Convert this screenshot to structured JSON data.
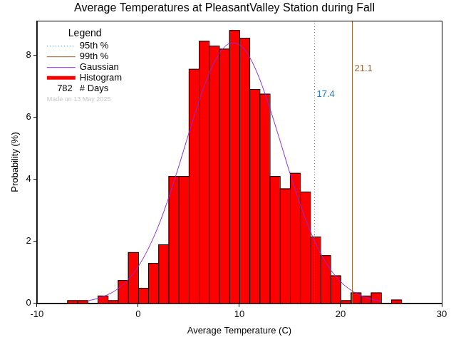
{
  "chart_data": {
    "type": "histogram",
    "title": "Average Temperatures at PleasantValley Station during Fall",
    "x_label": "Average Temperature (C)",
    "y_label": "Probability (%)",
    "bins": [
      -7,
      -6,
      -5,
      -4,
      -3,
      -2,
      -1,
      0,
      1,
      2,
      3,
      4,
      5,
      6,
      7,
      8,
      9,
      10,
      11,
      12,
      13,
      14,
      15,
      16,
      17,
      18,
      19,
      20,
      21,
      22,
      23,
      24,
      25,
      26
    ],
    "series": [
      {
        "name": "Histogram",
        "type": "bar",
        "color": "#ff0000",
        "values": [
          0.1,
          0.1,
          0,
          0.25,
          0.1,
          0.75,
          1.65,
          0.5,
          1.3,
          1.9,
          4.1,
          4.1,
          7.55,
          8.45,
          8.3,
          8.2,
          8.8,
          8.55,
          6.9,
          6.75,
          4.1,
          3.7,
          4.2,
          3.6,
          2.15,
          1.55,
          0.9,
          0.1,
          0.35,
          0.25,
          0.35,
          0,
          0.12
        ]
      },
      {
        "name": "Gaussian",
        "type": "line",
        "color": "#8a2be2",
        "x": [
          -5,
          -4,
          -3,
          -2,
          -1,
          0,
          1,
          2,
          3,
          4,
          5,
          6,
          7,
          8,
          9,
          10,
          11,
          12,
          13,
          14,
          15,
          16,
          17,
          18,
          19,
          20,
          21,
          22,
          23,
          24
        ],
        "values": [
          0.08,
          0.16,
          0.28,
          0.47,
          0.76,
          1.18,
          1.76,
          2.49,
          3.39,
          4.4,
          5.47,
          6.5,
          7.39,
          8.04,
          8.37,
          8.33,
          7.94,
          7.23,
          6.3,
          5.26,
          4.19,
          3.2,
          2.33,
          1.63,
          1.09,
          0.7,
          0.43,
          0.25,
          0.14,
          0.07
        ]
      }
    ],
    "reference_lines": [
      {
        "name": "95th %",
        "value": 17.4,
        "color": "#1e78d2",
        "line_style": "dotted"
      },
      {
        "name": "99th %",
        "value": 21.1,
        "color": "#a0602d",
        "line_style": "solid"
      }
    ],
    "legend": "upper left",
    "legend_title": "Legend",
    "days": 782,
    "days_label": "# Days",
    "note": "Made on 13 May 2025",
    "xlim": [
      -10,
      30
    ],
    "xticks": [
      -10,
      0,
      10,
      20,
      30
    ],
    "ylim": [
      0,
      9.1
    ],
    "yticks": [
      0,
      2,
      4,
      6,
      8
    ],
    "grid": false
  }
}
